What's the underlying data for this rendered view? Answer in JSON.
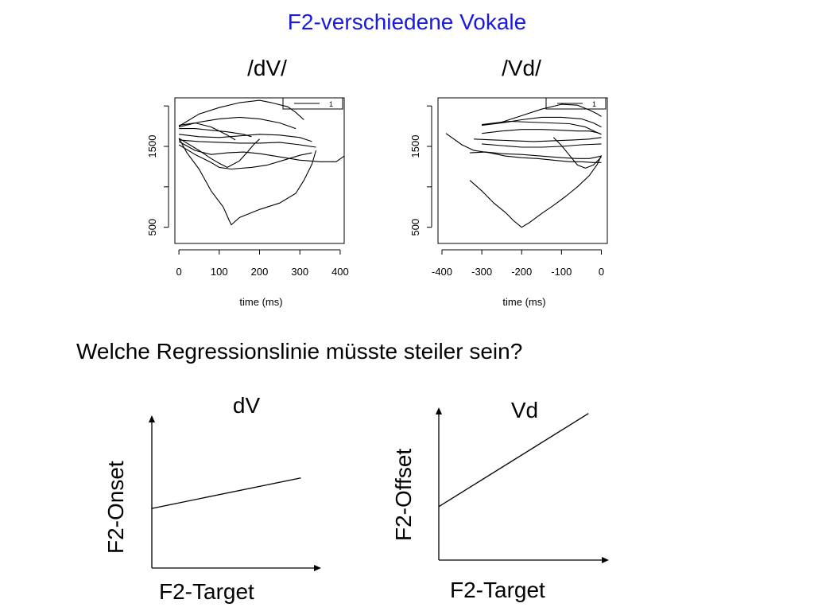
{
  "slide": {
    "title": "F2-verschiedene Vokale",
    "question": "Welche Regressionslinie müsste steiler sein?"
  },
  "chart_data": [
    {
      "type": "line",
      "title": "/dV/",
      "xlabel": "time (ms)",
      "ylabel": "",
      "xlim": [
        -10,
        410
      ],
      "ylim": [
        300,
        2100
      ],
      "x_ticks": [
        "0",
        "100",
        "200",
        "300",
        "400"
      ],
      "y_ticks": [
        "500",
        "1500"
      ],
      "legend": {
        "position": "top-right",
        "entries": [
          "1"
        ]
      },
      "series": [
        {
          "points": [
            [
              0,
              1750
            ],
            [
              50,
              1900
            ],
            [
              100,
              1980
            ],
            [
              150,
              2040
            ],
            [
              200,
              2070
            ],
            [
              230,
              2040
            ],
            [
              270,
              1990
            ],
            [
              290,
              1920
            ],
            [
              310,
              1830
            ]
          ]
        },
        {
          "points": [
            [
              0,
              1740
            ],
            [
              50,
              1800
            ],
            [
              100,
              1840
            ],
            [
              150,
              1860
            ],
            [
              200,
              1840
            ],
            [
              250,
              1790
            ],
            [
              290,
              1720
            ]
          ]
        },
        {
          "points": [
            [
              0,
              1760
            ],
            [
              40,
              1790
            ],
            [
              80,
              1740
            ],
            [
              120,
              1640
            ],
            [
              140,
              1580
            ]
          ]
        },
        {
          "points": [
            [
              0,
              1720
            ],
            [
              40,
              1720
            ],
            [
              80,
              1700
            ],
            [
              120,
              1680
            ],
            [
              160,
              1650
            ],
            [
              180,
              1620
            ]
          ]
        },
        {
          "points": [
            [
              0,
              1650
            ],
            [
              50,
              1620
            ],
            [
              100,
              1610
            ],
            [
              150,
              1630
            ],
            [
              200,
              1650
            ],
            [
              250,
              1640
            ],
            [
              300,
              1610
            ],
            [
              330,
              1560
            ]
          ]
        },
        {
          "points": [
            [
              0,
              1580
            ],
            [
              50,
              1560
            ],
            [
              100,
              1550
            ],
            [
              150,
              1540
            ],
            [
              200,
              1540
            ],
            [
              250,
              1550
            ],
            [
              300,
              1520
            ],
            [
              340,
              1490
            ]
          ]
        },
        {
          "points": [
            [
              0,
              1600
            ],
            [
              50,
              1450
            ],
            [
              80,
              1350
            ],
            [
              100,
              1290
            ],
            [
              120,
              1240
            ],
            [
              150,
              1320
            ],
            [
              170,
              1430
            ],
            [
              185,
              1520
            ],
            [
              200,
              1590
            ]
          ]
        },
        {
          "points": [
            [
              0,
              1560
            ],
            [
              40,
              1450
            ],
            [
              80,
              1400
            ],
            [
              120,
              1420
            ],
            [
              160,
              1430
            ],
            [
              200,
              1410
            ],
            [
              250,
              1370
            ],
            [
              300,
              1330
            ],
            [
              350,
              1310
            ],
            [
              390,
              1310
            ],
            [
              410,
              1380
            ]
          ]
        },
        {
          "points": [
            [
              0,
              1600
            ],
            [
              20,
              1420
            ],
            [
              50,
              1220
            ],
            [
              80,
              950
            ],
            [
              110,
              750
            ],
            [
              125,
              580
            ],
            [
              130,
              530
            ],
            [
              150,
              620
            ],
            [
              200,
              720
            ],
            [
              250,
              800
            ],
            [
              290,
              920
            ],
            [
              310,
              1080
            ],
            [
              330,
              1280
            ],
            [
              340,
              1450
            ]
          ]
        },
        {
          "points": [
            [
              0,
              1520
            ],
            [
              40,
              1400
            ],
            [
              80,
              1300
            ],
            [
              100,
              1240
            ],
            [
              130,
              1220
            ],
            [
              180,
              1240
            ],
            [
              220,
              1270
            ],
            [
              260,
              1330
            ],
            [
              300,
              1390
            ],
            [
              330,
              1420
            ]
          ]
        }
      ]
    },
    {
      "type": "line",
      "title": "/Vd/",
      "xlabel": "time (ms)",
      "ylabel": "",
      "xlim": [
        -410,
        15
      ],
      "ylim": [
        300,
        2100
      ],
      "x_ticks": [
        "-400",
        "-300",
        "-200",
        "-100",
        "0"
      ],
      "y_ticks": [
        "500",
        "1500"
      ],
      "legend": {
        "position": "top-right",
        "entries": [
          "1"
        ]
      },
      "series": [
        {
          "points": [
            [
              -300,
              1770
            ],
            [
              -250,
              1800
            ],
            [
              -200,
              1880
            ],
            [
              -150,
              1960
            ],
            [
              -100,
              2020
            ],
            [
              -60,
              2010
            ],
            [
              -30,
              1950
            ],
            [
              -10,
              1900
            ],
            [
              0,
              1870
            ]
          ]
        },
        {
          "points": [
            [
              -300,
              1760
            ],
            [
              -250,
              1790
            ],
            [
              -200,
              1830
            ],
            [
              -150,
              1860
            ],
            [
              -100,
              1860
            ],
            [
              -50,
              1840
            ],
            [
              -20,
              1790
            ],
            [
              0,
              1740
            ]
          ]
        },
        {
          "points": [
            [
              -280,
              1780
            ],
            [
              -230,
              1810
            ],
            [
              -180,
              1800
            ],
            [
              -130,
              1790
            ],
            [
              -80,
              1780
            ],
            [
              -40,
              1740
            ],
            [
              -10,
              1670
            ],
            [
              0,
              1650
            ]
          ]
        },
        {
          "points": [
            [
              -300,
              1660
            ],
            [
              -250,
              1690
            ],
            [
              -200,
              1710
            ],
            [
              -150,
              1710
            ],
            [
              -100,
              1700
            ],
            [
              -60,
              1690
            ],
            [
              -30,
              1690
            ],
            [
              -10,
              1670
            ],
            [
              0,
              1650
            ]
          ]
        },
        {
          "points": [
            [
              -320,
              1590
            ],
            [
              -270,
              1580
            ],
            [
              -220,
              1570
            ],
            [
              -170,
              1560
            ],
            [
              -120,
              1570
            ],
            [
              -70,
              1580
            ],
            [
              -30,
              1590
            ],
            [
              0,
              1610
            ]
          ]
        },
        {
          "points": [
            [
              -300,
              1530
            ],
            [
              -250,
              1510
            ],
            [
              -200,
              1490
            ],
            [
              -150,
              1490
            ],
            [
              -100,
              1500
            ],
            [
              -50,
              1520
            ],
            [
              0,
              1530
            ]
          ]
        },
        {
          "points": [
            [
              -390,
              1660
            ],
            [
              -350,
              1520
            ],
            [
              -320,
              1450
            ],
            [
              -280,
              1420
            ],
            [
              -240,
              1380
            ],
            [
              -200,
              1360
            ],
            [
              -160,
              1350
            ],
            [
              -120,
              1330
            ],
            [
              -80,
              1310
            ],
            [
              -50,
              1310
            ],
            [
              -20,
              1300
            ],
            [
              0,
              1300
            ]
          ]
        },
        {
          "points": [
            [
              -330,
              1420
            ],
            [
              -290,
              1430
            ],
            [
              -250,
              1410
            ],
            [
              -200,
              1400
            ],
            [
              -150,
              1380
            ],
            [
              -100,
              1360
            ],
            [
              -60,
              1350
            ],
            [
              -30,
              1350
            ],
            [
              0,
              1380
            ]
          ]
        },
        {
          "points": [
            [
              -120,
              1610
            ],
            [
              -100,
              1510
            ],
            [
              -80,
              1390
            ],
            [
              -60,
              1270
            ],
            [
              -40,
              1230
            ],
            [
              -20,
              1270
            ],
            [
              0,
              1370
            ]
          ]
        },
        {
          "points": [
            [
              -330,
              1080
            ],
            [
              -300,
              950
            ],
            [
              -270,
              800
            ],
            [
              -240,
              680
            ],
            [
              -220,
              580
            ],
            [
              -200,
              500
            ],
            [
              -180,
              560
            ],
            [
              -150,
              670
            ],
            [
              -120,
              770
            ],
            [
              -90,
              880
            ],
            [
              -60,
              1000
            ],
            [
              -30,
              1140
            ],
            [
              -10,
              1280
            ],
            [
              0,
              1390
            ]
          ]
        }
      ]
    },
    {
      "type": "line",
      "title": "dV",
      "xlabel": "F2-Target",
      "ylabel": "F2-Onset",
      "xlim": [
        0,
        1
      ],
      "ylim": [
        0,
        1
      ],
      "series": [
        {
          "points": [
            [
              0,
              0.39
            ],
            [
              0.88,
              0.59
            ]
          ]
        }
      ]
    },
    {
      "type": "line",
      "title": "Vd",
      "xlabel": "F2-Target",
      "ylabel": "F2-Offset",
      "xlim": [
        0,
        1
      ],
      "ylim": [
        0,
        1
      ],
      "series": [
        {
          "points": [
            [
              0,
              0.35
            ],
            [
              0.88,
              0.96
            ]
          ]
        }
      ]
    }
  ]
}
